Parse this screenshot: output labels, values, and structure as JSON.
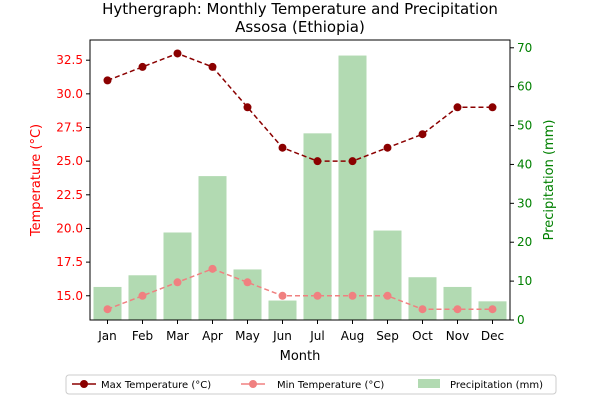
{
  "chart_data": {
    "type": "bar",
    "title": "Hythergraph: Monthly Temperature and Precipitation",
    "subtitle": "Assosa (Ethiopia)",
    "xlabel": "Month",
    "ylabel_left": "Temperature (°C)",
    "ylabel_right": "Precipitation (mm)",
    "categories": [
      "Jan",
      "Feb",
      "Mar",
      "Apr",
      "May",
      "Jun",
      "Jul",
      "Aug",
      "Sep",
      "Oct",
      "Nov",
      "Dec"
    ],
    "ylim_left": [
      13.2,
      34.0
    ],
    "ylim_right": [
      0,
      72
    ],
    "yticks_left": [
      "15.0",
      "17.5",
      "20.0",
      "22.5",
      "25.0",
      "27.5",
      "30.0",
      "32.5"
    ],
    "yticks_right": [
      "0",
      "10",
      "20",
      "30",
      "40",
      "50",
      "60",
      "70"
    ],
    "series": [
      {
        "name": "Max Temperature (°C)",
        "axis": "left",
        "kind": "line",
        "style": "dashed-marker",
        "color": "#8b0000",
        "values": [
          31,
          32,
          33,
          32,
          29,
          26,
          25,
          25,
          26,
          27,
          29,
          29
        ]
      },
      {
        "name": "Min Temperature (°C)",
        "axis": "left",
        "kind": "line",
        "style": "dashed-marker",
        "color": "#f08080",
        "values": [
          14,
          15,
          16,
          17,
          16,
          15,
          15,
          15,
          15,
          14,
          14,
          14
        ]
      },
      {
        "name": "Precipitation (mm)",
        "axis": "right",
        "kind": "bar",
        "color": "#b2dab2",
        "values": [
          8.5,
          11.5,
          22.5,
          37,
          13,
          5,
          48,
          68,
          23,
          11,
          8.5,
          4.8
        ]
      }
    ],
    "legend_position": "bottom-center",
    "grid": false,
    "colors": {
      "left_axis": "#ff0000",
      "right_axis": "#008000"
    }
  }
}
